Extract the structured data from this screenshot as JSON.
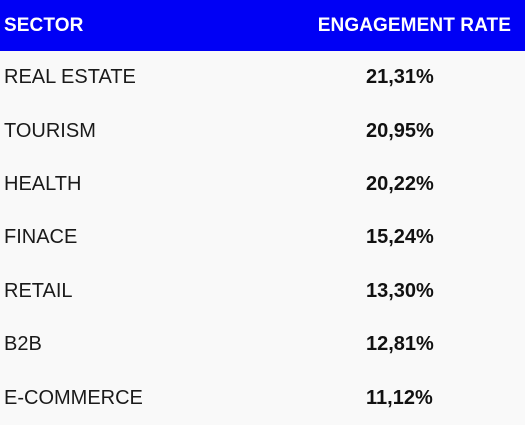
{
  "chart_data": {
    "type": "table",
    "columns": [
      "SECTOR",
      "ENGAGEMENT RATE"
    ],
    "rows": [
      {
        "sector": "REAL ESTATE",
        "rate": "21,31%"
      },
      {
        "sector": "TOURISM",
        "rate": "20,95%"
      },
      {
        "sector": "HEALTH",
        "rate": "20,22%"
      },
      {
        "sector": "FINACE",
        "rate": "15,24%"
      },
      {
        "sector": "RETAIL",
        "rate": "13,30%"
      },
      {
        "sector": "B2B",
        "rate": "12,81%"
      },
      {
        "sector": "E-COMMERCE",
        "rate": "11,12%"
      }
    ]
  },
  "colors": {
    "header_background": "#0000f5",
    "header_text": "#ffffff",
    "body_background": "#f9f9f9"
  }
}
